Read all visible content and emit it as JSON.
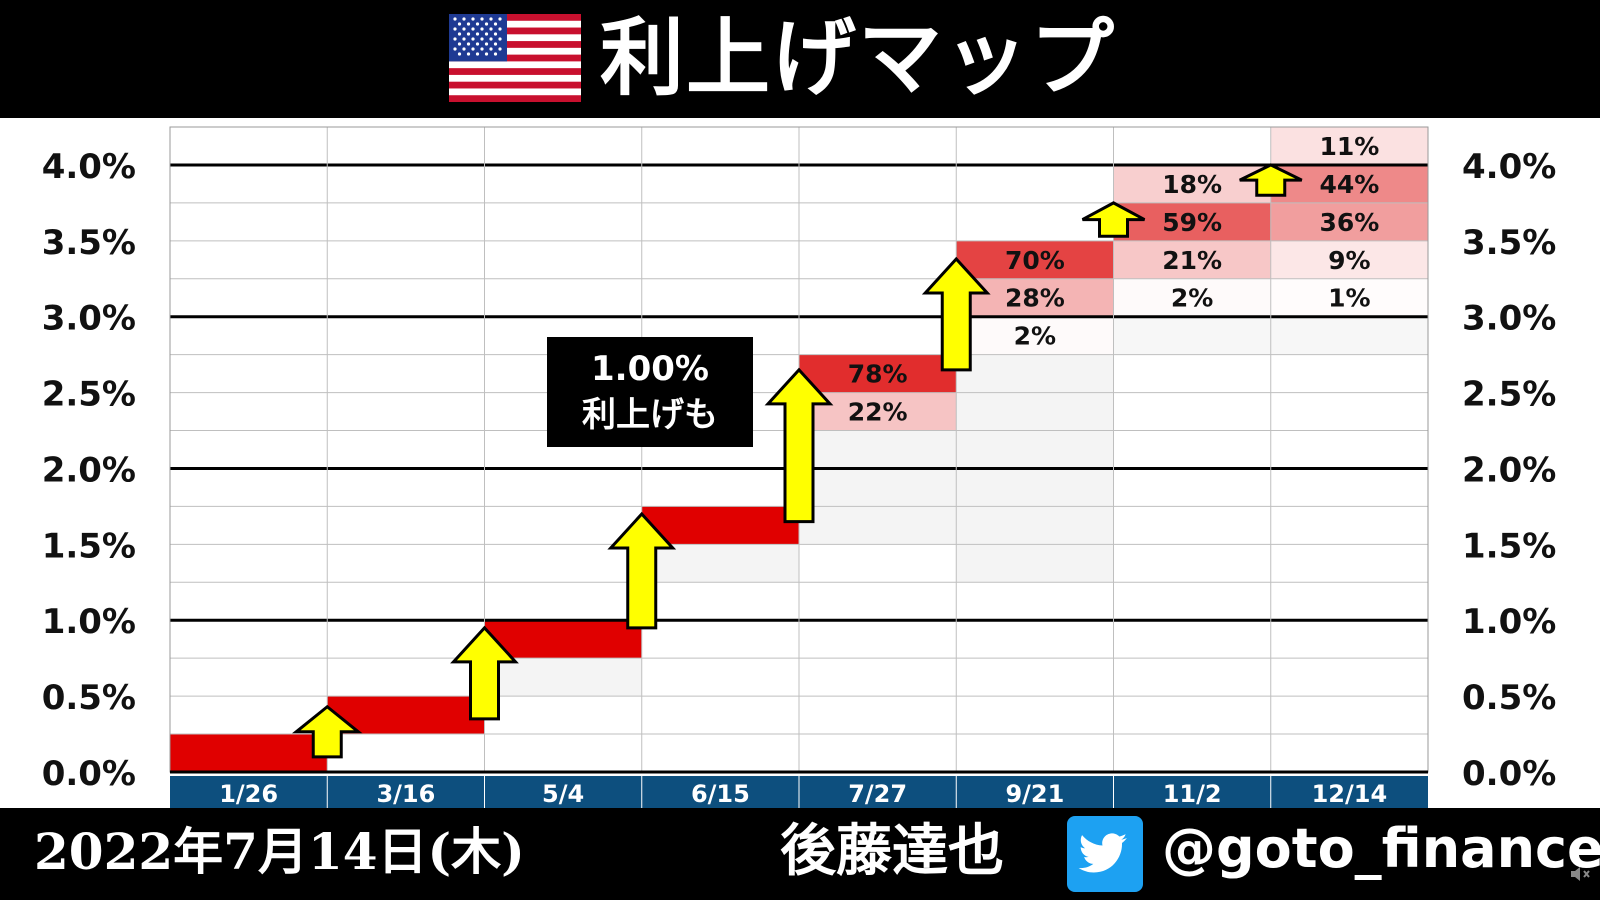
{
  "header": {
    "title": "利上げマップ",
    "flag_icon": "us-flag-icon"
  },
  "footer": {
    "date": "2022年7月14日(木)",
    "author": "後藤達也",
    "handle": "@goto_finance",
    "social_icon": "twitter-bird-icon"
  },
  "callout": {
    "line1": "1.00%",
    "line2": "利上げも"
  },
  "chart_data": {
    "type": "heatmap",
    "title": "利上げマップ",
    "x_categories": [
      "1/26",
      "3/16",
      "5/4",
      "6/15",
      "7/27",
      "9/21",
      "11/2",
      "12/14"
    ],
    "y_ticks": [
      "0.0%",
      "0.5%",
      "1.0%",
      "1.5%",
      "2.0%",
      "2.5%",
      "3.0%",
      "3.5%",
      "4.0%"
    ],
    "y_range": [
      0,
      4.25
    ],
    "y_step": 0.25,
    "grid": true,
    "rate_bands_upper_bound": [
      0.25,
      0.5,
      1.0,
      1.75,
      null,
      null,
      null,
      null
    ],
    "probabilities": [
      [],
      [],
      [],
      [],
      [
        {
          "upper": 2.75,
          "pct": 78
        },
        {
          "upper": 2.5,
          "pct": 22
        }
      ],
      [
        {
          "upper": 3.5,
          "pct": 70
        },
        {
          "upper": 3.25,
          "pct": 28
        },
        {
          "upper": 3.0,
          "pct": 2
        }
      ],
      [
        {
          "upper": 4.0,
          "pct": 18
        },
        {
          "upper": 3.75,
          "pct": 59
        },
        {
          "upper": 3.5,
          "pct": 21
        },
        {
          "upper": 3.25,
          "pct": 2
        }
      ],
      [
        {
          "upper": 4.25,
          "pct": 11
        },
        {
          "upper": 4.0,
          "pct": 44
        },
        {
          "upper": 3.75,
          "pct": 36
        },
        {
          "upper": 3.5,
          "pct": 9
        },
        {
          "upper": 3.25,
          "pct": 1
        }
      ]
    ],
    "colors": {
      "certain": "#e00000",
      "bar_background": "#0d4f7e",
      "arrow": "#ffff00"
    }
  }
}
